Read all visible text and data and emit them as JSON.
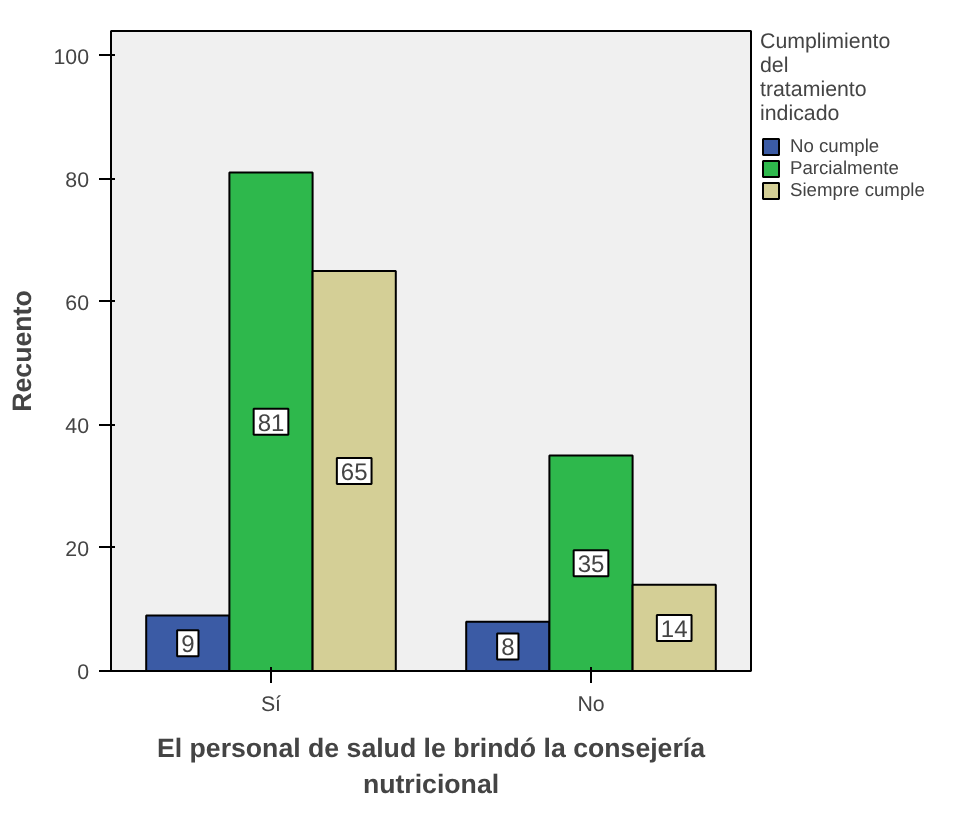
{
  "chart_data": {
    "type": "bar",
    "xlabel": "El personal de salud le brindó la consejería nutricional",
    "ylabel": "Recuento",
    "legend_title": "Cumplimiento del tratamiento indicado",
    "categories": [
      "Sí",
      "No"
    ],
    "series": [
      {
        "name": "No cumple",
        "color": "#3b5ba5",
        "values": [
          9,
          8
        ]
      },
      {
        "name": "Parcialmente",
        "color": "#2eb84c",
        "values": [
          81,
          35
        ]
      },
      {
        "name": "Siempre cumple",
        "color": "#d4cf96",
        "values": [
          65,
          14
        ]
      }
    ],
    "ylim": [
      0,
      104
    ],
    "yticks": [
      0,
      20,
      40,
      60,
      80,
      100
    ],
    "grid": false,
    "legend": "right",
    "data_labels": true
  }
}
